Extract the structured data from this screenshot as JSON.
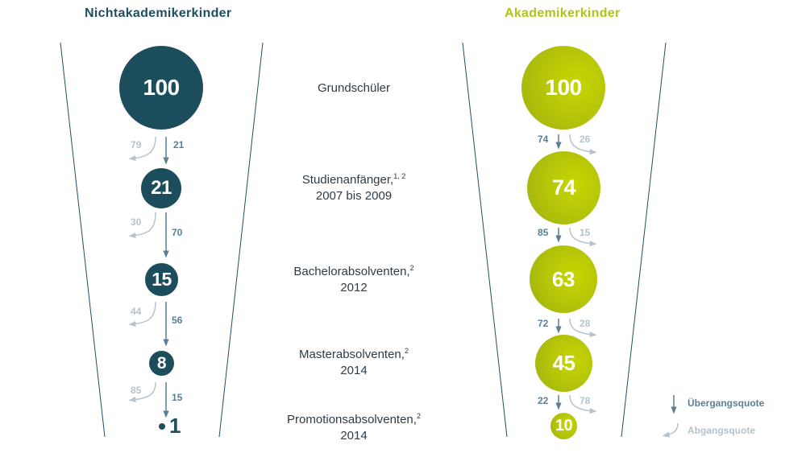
{
  "titles": {
    "left": "Nichtakademikerkinder",
    "right": "Akademikerkinder"
  },
  "stages": [
    {
      "label": "Grundschüler",
      "sup": "",
      "line2": ""
    },
    {
      "label": "Studienanfänger,",
      "sup": "1, 2",
      "line2": "2007 bis 2009"
    },
    {
      "label": "Bachelorabsolventen,",
      "sup": "2",
      "line2": "2012"
    },
    {
      "label": "Masterabsolventen,",
      "sup": "2",
      "line2": "2014"
    },
    {
      "label": "Promotionsabsolventen,",
      "sup": "2",
      "line2": "2014"
    }
  ],
  "nonacademic": {
    "values": [
      "100",
      "21",
      "15",
      "8",
      "1"
    ],
    "transition": [
      "21",
      "70",
      "56",
      "15"
    ],
    "dropout": [
      "79",
      "30",
      "44",
      "85"
    ]
  },
  "academic": {
    "values": [
      "100",
      "74",
      "63",
      "45",
      "10"
    ],
    "transition": [
      "74",
      "85",
      "72",
      "22"
    ],
    "dropout": [
      "26",
      "15",
      "28",
      "78"
    ]
  },
  "legend": {
    "transition": "Übergangsquote",
    "dropout": "Abgangsquote"
  },
  "colors": {
    "nonacademic": "#1b4d5d",
    "academic": "#b3c21a",
    "transition_arrow": "#5a7f93",
    "dropout_arrow": "#b6c3cc",
    "funnel_lines": "#1d4f5f"
  }
}
